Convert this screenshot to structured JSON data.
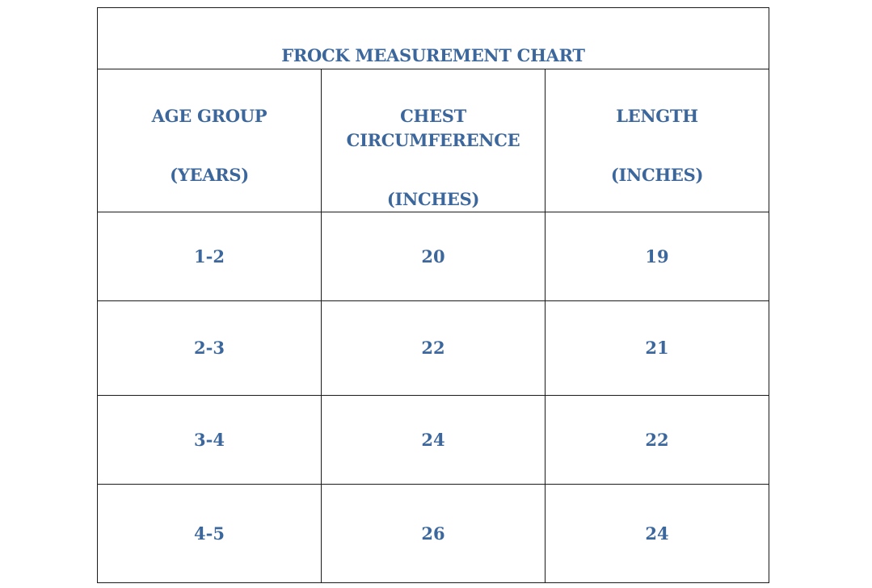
{
  "title": "FROCK MEASUREMENT CHART",
  "headers": {
    "age": {
      "line1": "AGE GROUP",
      "line2": "(YEARS)"
    },
    "chest": {
      "line1": "CHEST",
      "line2": "CIRCUMFERENCE",
      "line3": "(INCHES)"
    },
    "length": {
      "line1": "LENGTH",
      "line2": "(INCHES)"
    }
  },
  "rows": [
    {
      "age": "1-2",
      "chest": "20",
      "length": "19"
    },
    {
      "age": "2-3",
      "chest": "22",
      "length": "21"
    },
    {
      "age": "3-4",
      "chest": "24",
      "length": "22"
    },
    {
      "age": "4-5",
      "chest": "26",
      "length": "24"
    }
  ],
  "colors": {
    "text": "#3c679c",
    "border": "#1a1a1a",
    "background": "#ffffff"
  }
}
